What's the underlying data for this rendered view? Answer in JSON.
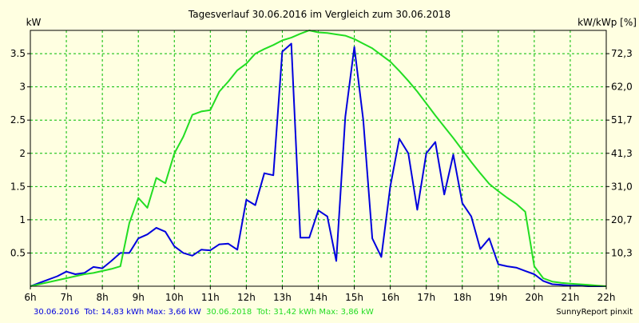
{
  "chart_data": {
    "type": "line",
    "title": "Tagesverlauf 30.06.2016 im Vergleich zum 30.06.2018",
    "ylabel_left": "kW",
    "ylabel_right": "kW/kWp [%]",
    "x_ticks": [
      "6h",
      "7h",
      "8h",
      "9h",
      "10h",
      "11h",
      "12h",
      "13h",
      "14h",
      "15h",
      "16h",
      "17h",
      "18h",
      "19h",
      "20h",
      "21h",
      "22h"
    ],
    "xlim": [
      6,
      22
    ],
    "ylim": [
      0,
      3.85
    ],
    "y_ticks_left": [
      "0.5",
      "1",
      "1.5",
      "2",
      "2.5",
      "3",
      "3.5"
    ],
    "y_ticks_right": [
      "10,3",
      "20,7",
      "31,0",
      "41,3",
      "51,7",
      "62,0",
      "72,3"
    ],
    "grid": true,
    "series": [
      {
        "name": "30.06.2016",
        "color": "#0000dd",
        "x": [
          6.0,
          6.25,
          6.5,
          6.75,
          7.0,
          7.25,
          7.5,
          7.75,
          8.0,
          8.25,
          8.5,
          8.75,
          9.0,
          9.25,
          9.5,
          9.75,
          10.0,
          10.25,
          10.5,
          10.75,
          11.0,
          11.25,
          11.5,
          11.75,
          12.0,
          12.25,
          12.5,
          12.75,
          13.0,
          13.25,
          13.5,
          13.75,
          14.0,
          14.25,
          14.5,
          14.75,
          15.0,
          15.25,
          15.5,
          15.75,
          16.0,
          16.25,
          16.5,
          16.75,
          17.0,
          17.25,
          17.5,
          17.75,
          18.0,
          18.25,
          18.5,
          18.75,
          19.0,
          19.25,
          19.5,
          19.75,
          20.0,
          20.25,
          20.5,
          20.75,
          21.0,
          21.25,
          21.5,
          21.75,
          22.0
        ],
        "y": [
          0.0,
          0.05,
          0.1,
          0.15,
          0.22,
          0.18,
          0.2,
          0.29,
          0.27,
          0.38,
          0.5,
          0.5,
          0.72,
          0.78,
          0.88,
          0.82,
          0.6,
          0.5,
          0.46,
          0.55,
          0.54,
          0.63,
          0.64,
          0.55,
          1.3,
          1.22,
          1.7,
          1.67,
          3.53,
          3.65,
          0.73,
          0.73,
          1.14,
          1.05,
          0.38,
          2.55,
          3.6,
          2.5,
          0.72,
          0.44,
          1.5,
          2.22,
          2.0,
          1.15,
          2.0,
          2.17,
          1.38,
          1.98,
          1.25,
          1.05,
          0.56,
          0.72,
          0.33,
          0.3,
          0.28,
          0.23,
          0.18,
          0.08,
          0.03,
          0.02,
          0.01,
          0.01,
          0.0,
          0.0,
          0.0
        ]
      },
      {
        "name": "30.06.2018",
        "color": "#22dd22",
        "x": [
          6.0,
          6.25,
          6.5,
          6.75,
          7.0,
          7.25,
          7.5,
          7.75,
          8.0,
          8.25,
          8.5,
          8.75,
          9.0,
          9.25,
          9.5,
          9.75,
          10.0,
          10.25,
          10.5,
          10.75,
          11.0,
          11.25,
          11.5,
          11.75,
          12.0,
          12.25,
          12.5,
          12.75,
          13.0,
          13.25,
          13.5,
          13.75,
          14.0,
          14.25,
          14.5,
          14.75,
          15.0,
          15.25,
          15.5,
          15.75,
          16.0,
          16.25,
          16.5,
          16.75,
          17.0,
          17.25,
          17.5,
          17.75,
          18.0,
          18.25,
          18.5,
          18.75,
          19.0,
          19.25,
          19.5,
          19.75,
          20.0,
          20.25,
          20.5,
          20.75,
          21.0,
          21.25,
          21.5,
          21.75,
          22.0
        ],
        "y": [
          0.0,
          0.03,
          0.06,
          0.09,
          0.12,
          0.15,
          0.18,
          0.2,
          0.23,
          0.26,
          0.3,
          0.95,
          1.33,
          1.18,
          1.63,
          1.55,
          2.0,
          2.25,
          2.58,
          2.63,
          2.65,
          2.93,
          3.08,
          3.25,
          3.35,
          3.5,
          3.57,
          3.63,
          3.7,
          3.74,
          3.8,
          3.85,
          3.82,
          3.81,
          3.79,
          3.77,
          3.72,
          3.65,
          3.58,
          3.48,
          3.38,
          3.24,
          3.09,
          2.93,
          2.75,
          2.57,
          2.4,
          2.23,
          2.05,
          1.87,
          1.7,
          1.54,
          1.43,
          1.33,
          1.24,
          1.12,
          0.3,
          0.12,
          0.07,
          0.05,
          0.04,
          0.03,
          0.02,
          0.01,
          0.0
        ]
      }
    ]
  },
  "footer": {
    "series1_date": "30.06.2016",
    "series1_summary": "Tot: 14,83 kWh Max: 3,66 kW",
    "series2_date": "30.06.2018",
    "series2_summary": "Tot: 31,42 kWh Max: 3,86 kW",
    "credit": "SunnyReport pinxit"
  }
}
